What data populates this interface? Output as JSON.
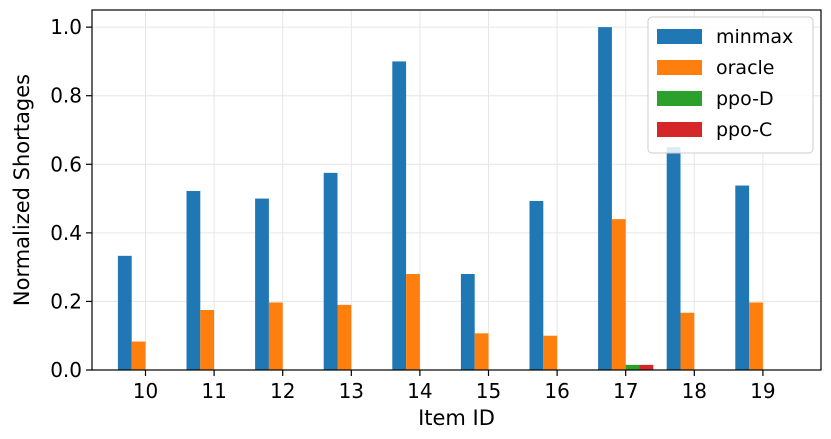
{
  "chart_data": {
    "type": "bar",
    "title": "",
    "xlabel": "Item ID",
    "ylabel": "Normalized Shortages",
    "categories": [
      "10",
      "11",
      "12",
      "13",
      "14",
      "15",
      "16",
      "17",
      "18",
      "19"
    ],
    "ylim": [
      0,
      1.05
    ],
    "yticks": [
      "0.0",
      "0.2",
      "0.4",
      "0.6",
      "0.8",
      "1.0"
    ],
    "grid": true,
    "legend_position": "top-right",
    "series": [
      {
        "name": "minmax",
        "color": "#1f77b4",
        "values": [
          0.333,
          0.522,
          0.5,
          0.575,
          0.9,
          0.28,
          0.493,
          1.0,
          0.65,
          0.538
        ]
      },
      {
        "name": "oracle",
        "color": "#ff7f0e",
        "values": [
          0.083,
          0.175,
          0.197,
          0.19,
          0.28,
          0.107,
          0.1,
          0.44,
          0.167,
          0.197
        ]
      },
      {
        "name": "ppo-D",
        "color": "#2ca02c",
        "values": [
          0,
          0,
          0,
          0,
          0,
          0,
          0,
          0.015,
          0,
          0
        ]
      },
      {
        "name": "ppo-C",
        "color": "#d62728",
        "values": [
          0,
          0,
          0,
          0,
          0,
          0,
          0,
          0.015,
          0,
          0
        ]
      }
    ]
  }
}
